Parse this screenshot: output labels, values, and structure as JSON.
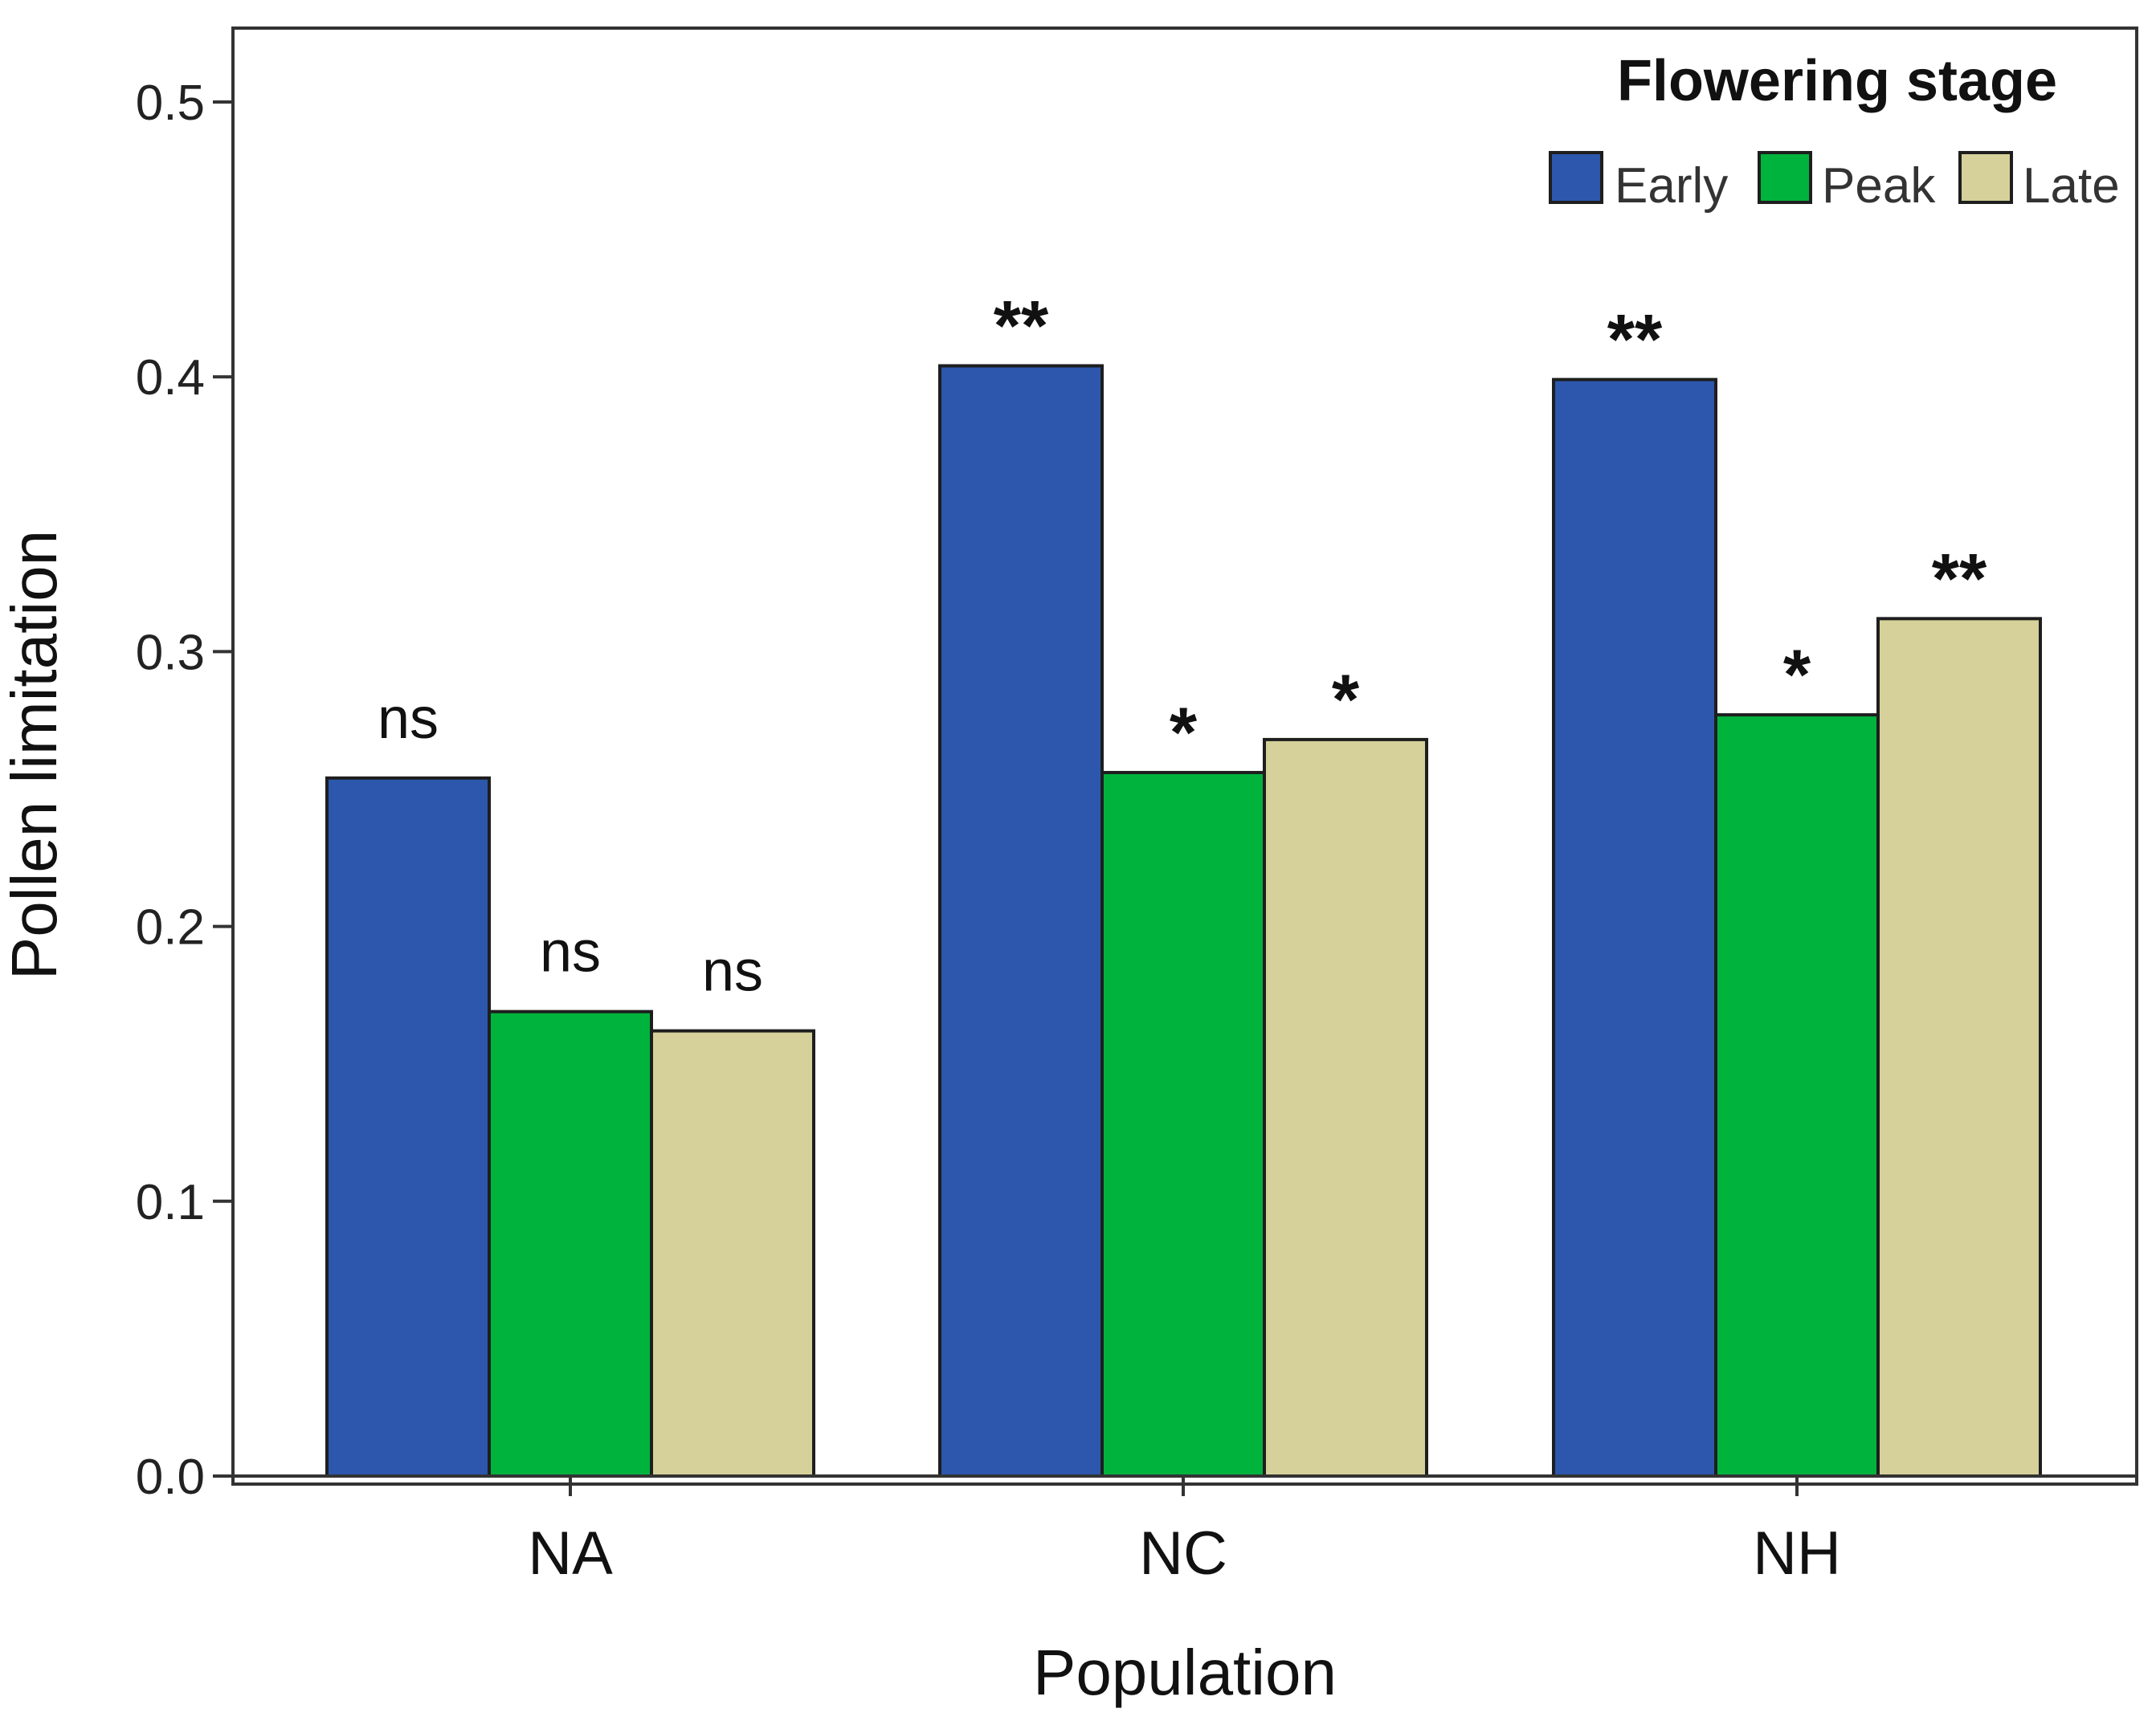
{
  "chart_data": {
    "type": "bar",
    "title": "",
    "xlabel": "Population",
    "ylabel": "Pollen limitation",
    "ylim": [
      0,
      0.5
    ],
    "yticks": [
      "0.0",
      "0.1",
      "0.2",
      "0.3",
      "0.4",
      "0.5"
    ],
    "categories": [
      "NA",
      "NC",
      "NH"
    ],
    "legend": {
      "title": "Flowering  stage",
      "position": "top-right"
    },
    "series": [
      {
        "name": "Early",
        "color": "#2c57ad",
        "values": [
          0.254,
          0.404,
          0.399
        ],
        "labels": [
          "ns",
          "**",
          "**"
        ]
      },
      {
        "name": "Peak",
        "color": "#00b33c",
        "values": [
          0.169,
          0.256,
          0.277
        ],
        "labels": [
          "ns",
          "*",
          "*"
        ]
      },
      {
        "name": "Late",
        "color": "#d6d19a",
        "values": [
          0.162,
          0.268,
          0.312
        ],
        "labels": [
          "ns",
          "*",
          "**"
        ]
      }
    ],
    "grid": false
  }
}
